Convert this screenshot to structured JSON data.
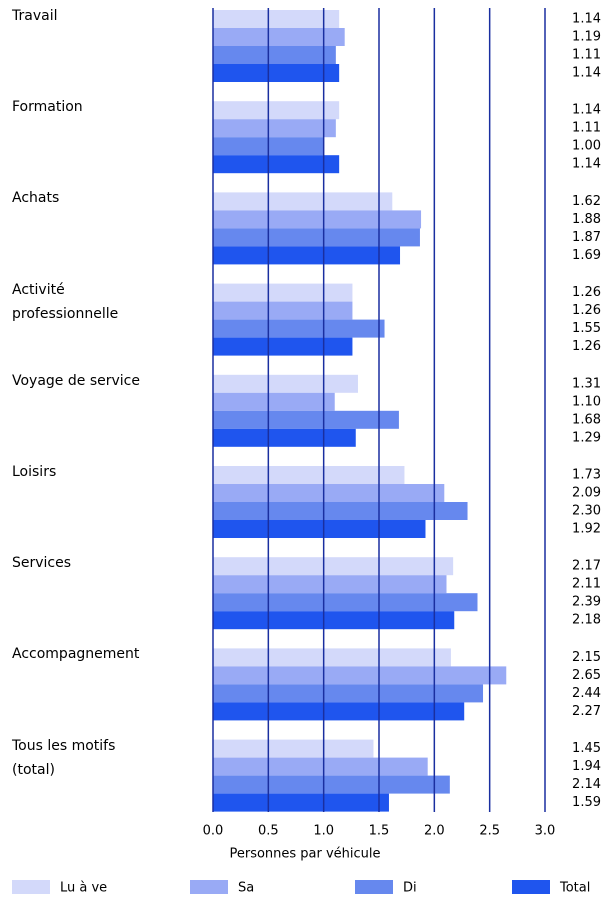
{
  "chart_data": {
    "type": "bar",
    "orientation": "horizontal",
    "categories": [
      "Travail",
      "Formation",
      "Achats",
      "Activité professionnelle",
      "Voyage de service",
      "Loisirs",
      "Services",
      "Accompagnement",
      "Tous les motifs (total)"
    ],
    "series": [
      {
        "name": "Lu à ve",
        "color": "#d3d9fa",
        "values": [
          1.14,
          1.14,
          1.62,
          1.26,
          1.31,
          1.73,
          2.17,
          2.15,
          1.45
        ],
        "value_labels": [
          "1.14",
          "1.14",
          "1.62",
          "1.26",
          "1.31",
          "1.73",
          "2.17",
          "2.15",
          "1.45"
        ]
      },
      {
        "name": "Sa",
        "color": "#99aaf5",
        "values": [
          1.19,
          1.11,
          1.88,
          1.26,
          1.1,
          2.09,
          2.11,
          2.65,
          1.94
        ],
        "value_labels": [
          "1.19",
          "1.11",
          "1.88",
          "1.26",
          "1.10",
          "2.09",
          "2.11",
          "2.65",
          "1.94"
        ]
      },
      {
        "name": "Di",
        "color": "#6688ee",
        "values": [
          1.11,
          1.0,
          1.87,
          1.55,
          1.68,
          2.3,
          2.39,
          2.44,
          2.14
        ],
        "value_labels": [
          "1.11",
          "1.00",
          "1.87",
          "1.55",
          "1.68",
          "2.30",
          "2.39",
          "2.44",
          "2.14"
        ]
      },
      {
        "name": "Total",
        "color": "#1f55ee",
        "values": [
          1.14,
          1.14,
          1.69,
          1.26,
          1.29,
          1.92,
          2.18,
          2.27,
          1.59
        ],
        "value_labels": [
          "1.14",
          "1.14",
          "1.69",
          "1.26",
          "1.29",
          "1.92",
          "2.18",
          "2.27",
          "1.59"
        ]
      }
    ],
    "xlabel": "Personnes par véhicule",
    "xlim": [
      0,
      3
    ],
    "xticks": [
      {
        "value": 0,
        "label": "0.0"
      },
      {
        "value": 0.5,
        "label": "0.5"
      },
      {
        "value": 1,
        "label": "1.0"
      },
      {
        "value": 1.5,
        "label": "1.5"
      },
      {
        "value": 2,
        "label": "2.0"
      },
      {
        "value": 2.5,
        "label": "2.5"
      },
      {
        "value": 3,
        "label": "3.0"
      }
    ],
    "grid": true,
    "grid_color": "#1a2fa0",
    "legend": "bottom"
  }
}
